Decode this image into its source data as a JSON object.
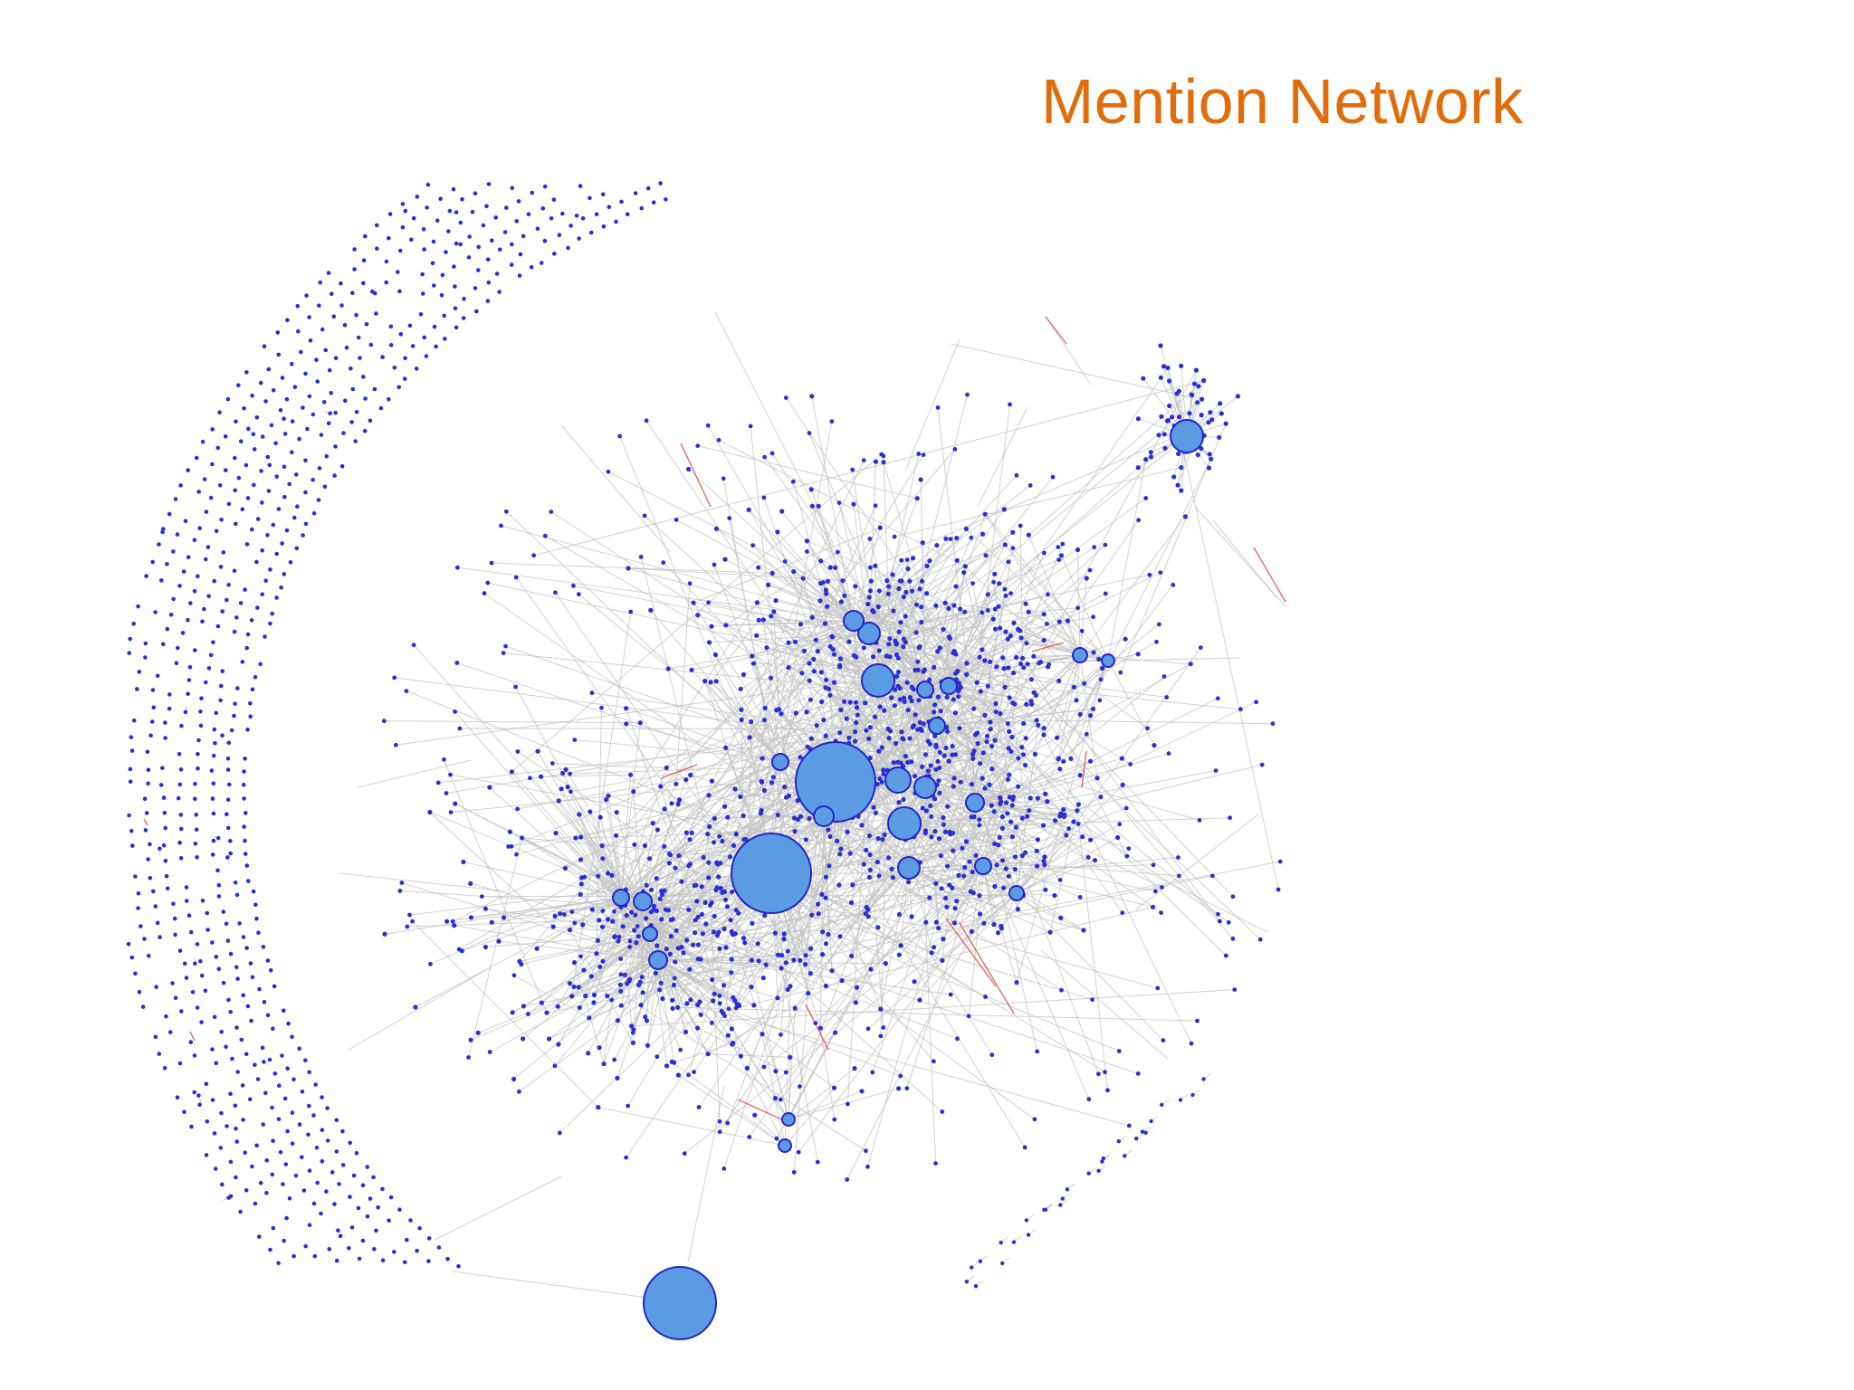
{
  "slide": {
    "title": "Mention Network",
    "title_color": "#e36c0a"
  },
  "network": {
    "edge_color": "#c2c2c2",
    "highlight_edge_color": "#d9534f",
    "node_color": "#2a2fd4",
    "hub_fill_color": "#5b9be3",
    "hub_stroke_color": "#2525c8"
  }
}
